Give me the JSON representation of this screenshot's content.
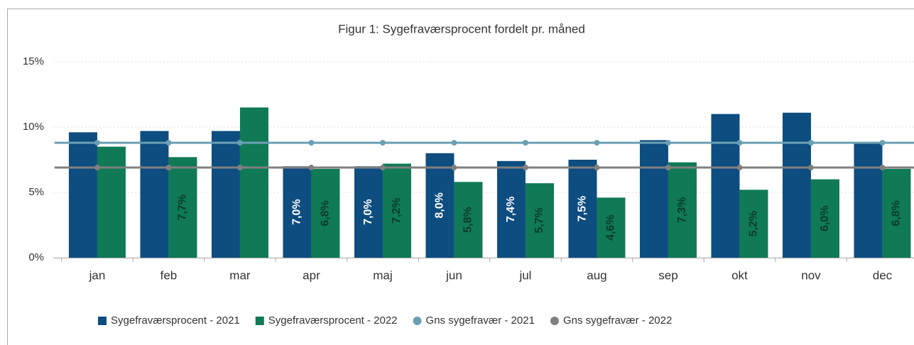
{
  "chart_data": {
    "type": "bar",
    "title": "Figur 1: Sygefraværsprocent fordelt pr. måned",
    "categories": [
      "jan",
      "feb",
      "mar",
      "apr",
      "maj",
      "jun",
      "jul",
      "aug",
      "sep",
      "okt",
      "nov",
      "dec"
    ],
    "series": [
      {
        "name": "Sygefraværsprocent - 2021",
        "color": "#0d4d80",
        "values": [
          9.6,
          9.7,
          9.7,
          7.0,
          7.0,
          8.0,
          7.4,
          7.5,
          9.0,
          11.0,
          11.1,
          8.8
        ],
        "value_labels": [
          null,
          null,
          null,
          "7,0%",
          "7,0%",
          "8,0%",
          "7,4%",
          "7,5%",
          null,
          null,
          null,
          null
        ]
      },
      {
        "name": "Sygefraværsprocent - 2022",
        "color": "#0f7a55",
        "values": [
          8.5,
          7.7,
          11.5,
          6.8,
          7.2,
          5.8,
          5.7,
          4.6,
          7.3,
          5.2,
          6.0,
          6.8
        ],
        "value_labels": [
          null,
          "7,7%",
          null,
          "6,8%",
          "7,2%",
          "5,8%",
          "5,7%",
          "4,6%",
          "7,3%",
          "5,2%",
          "6,0%",
          "6,8%"
        ]
      },
      {
        "name": "Gns sygefravær - 2021",
        "type": "line",
        "color": "#6b9fb3",
        "values": [
          8.8,
          8.8,
          8.8,
          8.8,
          8.8,
          8.8,
          8.8,
          8.8,
          8.8,
          8.8,
          8.8,
          8.8
        ]
      },
      {
        "name": "Gns sygefravær - 2022",
        "type": "line",
        "color": "#808080",
        "values": [
          6.9,
          6.9,
          6.9,
          6.9,
          6.9,
          6.9,
          6.9,
          6.9,
          6.9,
          6.9,
          6.9,
          6.9
        ]
      }
    ],
    "ylim": [
      0,
      15
    ],
    "yticks": [
      {
        "value": 0,
        "label": "0%"
      },
      {
        "value": 5,
        "label": "5%"
      },
      {
        "value": 10,
        "label": "10%"
      },
      {
        "value": 15,
        "label": "15%"
      }
    ],
    "grid": true,
    "legend": "bottom"
  }
}
